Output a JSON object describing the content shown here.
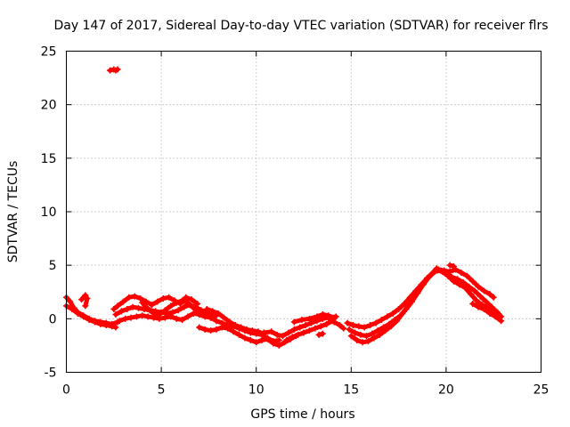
{
  "colors": {
    "series": "#ff0000",
    "grid": "#a0a0a0",
    "axes": "#000000"
  },
  "chart_data": {
    "type": "scatter",
    "title": "Day 147 of 2017, Sidereal Day-to-day VTEC variation (SDTVAR) for receiver flrs",
    "xlabel": "GPS time / hours",
    "ylabel": "SDTVAR / TECUs",
    "xlim": [
      0,
      25
    ],
    "ylim": [
      -5,
      25
    ],
    "xticks": [
      0,
      5,
      10,
      15,
      20,
      25
    ],
    "yticks": [
      -5,
      0,
      5,
      10,
      15,
      20,
      25
    ],
    "grid": true,
    "marker": "+",
    "series": [
      {
        "name": "SDTVAR",
        "color": "#ff0000",
        "tracks": [
          [
            [
              0.0,
              2.0
            ],
            [
              0.2,
              1.6
            ],
            [
              0.4,
              1.0
            ],
            [
              0.6,
              0.6
            ],
            [
              0.9,
              0.3
            ],
            [
              1.2,
              0.0
            ],
            [
              1.5,
              -0.2
            ],
            [
              1.8,
              -0.3
            ],
            [
              2.1,
              -0.4
            ],
            [
              2.4,
              -0.5
            ],
            [
              2.7,
              -0.3
            ]
          ],
          [
            [
              0.0,
              1.2
            ],
            [
              0.3,
              0.9
            ],
            [
              0.6,
              0.5
            ],
            [
              0.9,
              0.2
            ],
            [
              1.2,
              -0.1
            ],
            [
              1.5,
              -0.3
            ],
            [
              1.8,
              -0.5
            ],
            [
              2.1,
              -0.6
            ],
            [
              2.4,
              -0.7
            ],
            [
              2.6,
              -0.8
            ]
          ],
          [
            [
              0.8,
              1.8
            ],
            [
              1.0,
              2.2
            ],
            [
              1.1,
              1.9
            ],
            [
              1.0,
              1.2
            ]
          ],
          [
            [
              2.5,
              0.9
            ],
            [
              2.7,
              1.2
            ],
            [
              3.0,
              1.6
            ],
            [
              3.3,
              2.0
            ],
            [
              3.6,
              2.1
            ],
            [
              3.9,
              1.9
            ],
            [
              4.2,
              1.6
            ],
            [
              4.5,
              1.3
            ],
            [
              4.8,
              1.6
            ],
            [
              5.1,
              1.9
            ],
            [
              5.4,
              2.0
            ],
            [
              5.7,
              1.7
            ],
            [
              6.0,
              1.4
            ],
            [
              6.3,
              2.0
            ],
            [
              6.6,
              1.8
            ],
            [
              6.9,
              1.4
            ]
          ],
          [
            [
              2.6,
              0.4
            ],
            [
              2.9,
              0.7
            ],
            [
              3.2,
              0.9
            ],
            [
              3.5,
              1.1
            ],
            [
              3.8,
              1.0
            ],
            [
              4.1,
              0.9
            ],
            [
              4.4,
              0.8
            ],
            [
              4.7,
              0.7
            ],
            [
              5.0,
              0.6
            ],
            [
              5.3,
              0.5
            ],
            [
              5.6,
              0.6
            ],
            [
              5.9,
              0.8
            ],
            [
              6.2,
              1.1
            ],
            [
              6.5,
              1.3
            ],
            [
              6.8,
              1.1
            ],
            [
              7.1,
              0.8
            ],
            [
              7.4,
              0.6
            ],
            [
              7.7,
              0.5
            ]
          ],
          [
            [
              2.8,
              -0.2
            ],
            [
              3.1,
              0.0
            ],
            [
              3.4,
              0.1
            ],
            [
              3.7,
              0.2
            ],
            [
              4.0,
              0.3
            ],
            [
              4.3,
              0.2
            ],
            [
              4.6,
              0.1
            ],
            [
              4.9,
              0.0
            ],
            [
              5.2,
              0.1
            ],
            [
              5.5,
              0.2
            ],
            [
              5.8,
              0.0
            ],
            [
              6.1,
              -0.1
            ],
            [
              6.4,
              0.2
            ],
            [
              6.7,
              0.5
            ],
            [
              7.0,
              0.4
            ],
            [
              7.3,
              0.2
            ],
            [
              7.6,
              0.1
            ],
            [
              7.9,
              0.3
            ]
          ],
          [
            [
              4.0,
              1.5
            ],
            [
              4.3,
              0.9
            ],
            [
              4.6,
              0.5
            ],
            [
              4.9,
              0.4
            ],
            [
              5.2,
              0.8
            ],
            [
              5.5,
              1.2
            ],
            [
              5.8,
              1.5
            ],
            [
              6.1,
              1.7
            ],
            [
              6.4,
              1.5
            ],
            [
              6.7,
              1.0
            ],
            [
              7.0,
              0.7
            ],
            [
              7.3,
              0.4
            ],
            [
              7.6,
              0.1
            ],
            [
              7.9,
              -0.2
            ],
            [
              8.2,
              -0.4
            ],
            [
              8.5,
              -0.6
            ],
            [
              8.8,
              -0.7
            ],
            [
              9.1,
              -0.9
            ],
            [
              9.4,
              -1.1
            ],
            [
              9.7,
              -1.3
            ],
            [
              10.0,
              -1.4
            ],
            [
              10.3,
              -1.5
            ],
            [
              10.6,
              -1.8
            ],
            [
              10.9,
              -2.1
            ],
            [
              11.2,
              -2.0
            ]
          ],
          [
            [
              7.0,
              -0.8
            ],
            [
              7.3,
              -1.0
            ],
            [
              7.6,
              -1.1
            ],
            [
              7.9,
              -1.0
            ],
            [
              8.2,
              -0.8
            ],
            [
              8.5,
              -0.9
            ],
            [
              8.8,
              -1.2
            ],
            [
              9.1,
              -1.5
            ],
            [
              9.4,
              -1.8
            ],
            [
              9.7,
              -2.0
            ],
            [
              10.0,
              -2.2
            ],
            [
              10.3,
              -2.0
            ],
            [
              10.6,
              -1.9
            ],
            [
              10.9,
              -2.3
            ],
            [
              11.2,
              -2.5
            ],
            [
              11.5,
              -2.2
            ],
            [
              11.8,
              -1.9
            ],
            [
              12.1,
              -1.6
            ]
          ],
          [
            [
              7.4,
              0.9
            ],
            [
              7.7,
              0.7
            ],
            [
              8.0,
              0.5
            ],
            [
              8.3,
              0.1
            ],
            [
              8.6,
              -0.3
            ],
            [
              8.9,
              -0.6
            ],
            [
              9.2,
              -0.8
            ],
            [
              9.5,
              -1.0
            ],
            [
              9.8,
              -1.1
            ],
            [
              10.1,
              -1.2
            ],
            [
              10.4,
              -1.4
            ]
          ],
          [
            [
              10.4,
              -1.3
            ],
            [
              10.8,
              -1.2
            ],
            [
              11.1,
              -1.5
            ],
            [
              11.4,
              -1.6
            ],
            [
              11.7,
              -1.3
            ],
            [
              12.0,
              -1.0
            ],
            [
              12.3,
              -0.8
            ],
            [
              12.6,
              -0.6
            ],
            [
              12.9,
              -0.4
            ],
            [
              13.2,
              -0.2
            ],
            [
              13.5,
              0.0
            ],
            [
              13.8,
              0.1
            ],
            [
              14.1,
              -0.3
            ],
            [
              14.4,
              -0.6
            ],
            [
              14.6,
              -0.9
            ]
          ],
          [
            [
              11.6,
              -2.0
            ],
            [
              11.9,
              -1.7
            ],
            [
              12.2,
              -1.5
            ],
            [
              12.5,
              -1.3
            ],
            [
              12.8,
              -1.1
            ],
            [
              13.1,
              -0.9
            ],
            [
              13.4,
              -0.7
            ],
            [
              13.7,
              -0.5
            ],
            [
              14.0,
              -0.2
            ],
            [
              14.2,
              0.2
            ]
          ],
          [
            [
              12.0,
              -0.3
            ],
            [
              12.4,
              -0.1
            ],
            [
              12.8,
              0.0
            ],
            [
              13.2,
              0.2
            ],
            [
              13.5,
              0.4
            ],
            [
              13.8,
              0.3
            ],
            [
              14.1,
              0.1
            ]
          ],
          [
            [
              13.3,
              -1.5
            ],
            [
              13.5,
              -1.4
            ]
          ],
          [
            [
              14.8,
              -0.4
            ],
            [
              15.1,
              -0.6
            ],
            [
              15.4,
              -0.7
            ],
            [
              15.7,
              -0.8
            ],
            [
              16.0,
              -0.6
            ],
            [
              16.3,
              -0.4
            ],
            [
              16.6,
              -0.1
            ],
            [
              16.9,
              0.2
            ],
            [
              17.2,
              0.5
            ],
            [
              17.5,
              0.9
            ],
            [
              17.8,
              1.4
            ],
            [
              18.1,
              2.0
            ],
            [
              18.4,
              2.6
            ],
            [
              18.7,
              3.2
            ],
            [
              19.0,
              3.8
            ],
            [
              19.3,
              4.3
            ],
            [
              19.6,
              4.6
            ],
            [
              19.9,
              4.5
            ],
            [
              20.2,
              4.4
            ],
            [
              20.5,
              4.6
            ],
            [
              20.8,
              4.3
            ],
            [
              21.1,
              4.0
            ],
            [
              21.4,
              3.5
            ],
            [
              21.7,
              3.0
            ],
            [
              22.0,
              2.6
            ],
            [
              22.3,
              2.3
            ],
            [
              22.5,
              2.0
            ]
          ],
          [
            [
              14.9,
              -1.0
            ],
            [
              15.2,
              -1.3
            ],
            [
              15.5,
              -1.5
            ],
            [
              15.8,
              -1.6
            ],
            [
              16.1,
              -1.4
            ],
            [
              16.4,
              -1.1
            ],
            [
              16.7,
              -0.8
            ],
            [
              17.0,
              -0.5
            ],
            [
              17.3,
              -0.1
            ],
            [
              17.6,
              0.3
            ],
            [
              17.9,
              0.9
            ],
            [
              18.2,
              1.6
            ],
            [
              18.5,
              2.4
            ],
            [
              18.8,
              3.2
            ],
            [
              19.1,
              3.9
            ],
            [
              19.4,
              4.4
            ],
            [
              19.7,
              4.5
            ],
            [
              20.0,
              4.2
            ],
            [
              20.3,
              3.9
            ],
            [
              20.6,
              3.7
            ],
            [
              20.9,
              3.4
            ],
            [
              21.2,
              3.0
            ],
            [
              21.5,
              2.6
            ],
            [
              21.8,
              2.1
            ],
            [
              22.1,
              1.6
            ],
            [
              22.4,
              1.1
            ],
            [
              22.7,
              0.6
            ],
            [
              22.9,
              0.2
            ]
          ],
          [
            [
              15.0,
              -1.6
            ],
            [
              15.3,
              -2.0
            ],
            [
              15.6,
              -2.2
            ],
            [
              15.9,
              -2.1
            ],
            [
              16.2,
              -1.8
            ],
            [
              16.5,
              -1.5
            ],
            [
              16.8,
              -1.1
            ],
            [
              17.1,
              -0.7
            ],
            [
              17.4,
              -0.2
            ],
            [
              17.7,
              0.5
            ],
            [
              18.0,
              1.2
            ],
            [
              18.3,
              2.0
            ],
            [
              18.6,
              2.8
            ],
            [
              18.9,
              3.5
            ],
            [
              19.2,
              4.1
            ],
            [
              19.5,
              4.7
            ],
            [
              19.8,
              4.4
            ],
            [
              20.1,
              4.0
            ],
            [
              20.4,
              3.5
            ],
            [
              20.7,
              3.2
            ],
            [
              21.0,
              2.9
            ],
            [
              21.3,
              2.3
            ],
            [
              21.6,
              1.7
            ],
            [
              21.9,
              1.3
            ],
            [
              22.2,
              1.0
            ],
            [
              22.5,
              0.7
            ],
            [
              22.8,
              0.0
            ]
          ],
          [
            [
              21.4,
              1.4
            ],
            [
              21.7,
              1.1
            ],
            [
              22.0,
              0.9
            ],
            [
              22.3,
              0.5
            ],
            [
              22.6,
              0.2
            ],
            [
              22.9,
              -0.2
            ]
          ],
          [
            [
              20.2,
              5.0
            ],
            [
              20.4,
              4.9
            ]
          ],
          [
            [
              2.3,
              23.2
            ],
            [
              2.5,
              23.3
            ],
            [
              2.6,
              23.2
            ],
            [
              2.7,
              23.3
            ]
          ]
        ]
      }
    ]
  }
}
